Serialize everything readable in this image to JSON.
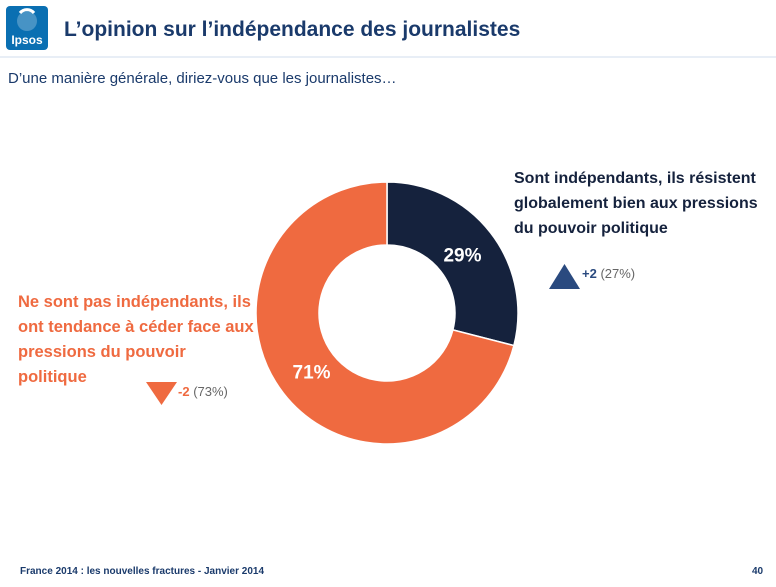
{
  "brand": {
    "logo_text": "Ipsos"
  },
  "title": "L’opinion sur l’indépendance des journalistes",
  "subtitle": "D’une manière générale, diriez-vous que les journalistes…",
  "chart_data": {
    "type": "pie",
    "donut": true,
    "slices": [
      {
        "label": "Sont indépendants, ils résistent globalement bien aux pressions  du pouvoir politique",
        "value": 29,
        "value_label": "29%",
        "change": "+2",
        "previous": "(27%)",
        "direction": "up",
        "color": "#15223d",
        "change_color": "#2a4a7f"
      },
      {
        "label": "Ne sont pas indépendants, ils ont tendance à céder face aux pressions du pouvoir politique",
        "value": 71,
        "value_label": "71%",
        "change": "-2",
        "previous": "(73%)",
        "direction": "down",
        "color": "#ef6a40",
        "change_color": "#ef6a40"
      }
    ]
  },
  "footer": "France 2014 : les nouvelles fractures - Janvier 2014",
  "page_number": "40"
}
